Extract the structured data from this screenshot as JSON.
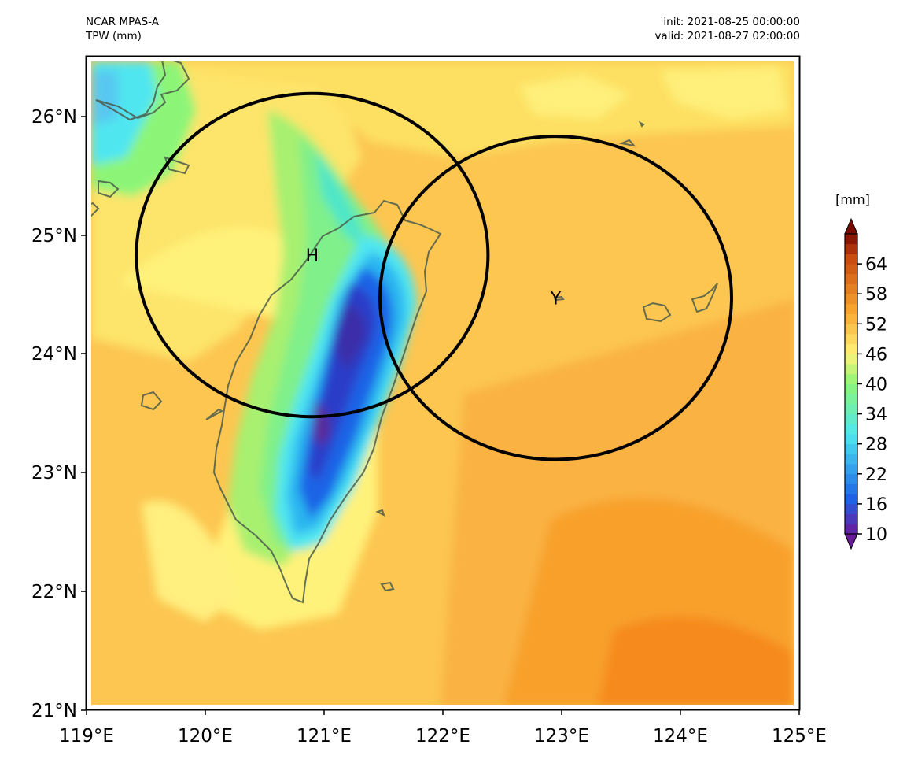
{
  "header": {
    "model": "NCAR MPAS-A",
    "variable": "TPW (mm)",
    "init": "init: 2021-08-25 00:00:00",
    "valid": "valid: 2021-08-27 02:00:00"
  },
  "map": {
    "lon_range": [
      119,
      125
    ],
    "lat_range": [
      21,
      26.5
    ],
    "x_ticks": [
      "119°E",
      "120°E",
      "121°E",
      "122°E",
      "123°E",
      "124°E",
      "125°E"
    ],
    "y_ticks": [
      "21°N",
      "22°N",
      "23°N",
      "24°N",
      "25°N",
      "26°N"
    ],
    "circles": [
      {
        "label": "H",
        "center_lon": 120.9,
        "center_lat": 24.83,
        "radius_lon": 1.48,
        "radius_lat": 1.36
      },
      {
        "label": "Y",
        "center_lon": 122.95,
        "center_lat": 24.47,
        "radius_lon": 1.48,
        "radius_lat": 1.36
      }
    ]
  },
  "colorbar": {
    "unit": "[mm]",
    "ticks": [
      "10",
      "16",
      "22",
      "28",
      "34",
      "40",
      "46",
      "52",
      "58",
      "64"
    ],
    "colors": {
      "low": "#6a1b9a",
      "blue": "#1e64e6",
      "cyan": "#4fe6f0",
      "green": "#8cf578",
      "yellow": "#fff27a",
      "orange": "#f9a832",
      "red": "#c84a10",
      "high": "#7a0a00"
    }
  }
}
